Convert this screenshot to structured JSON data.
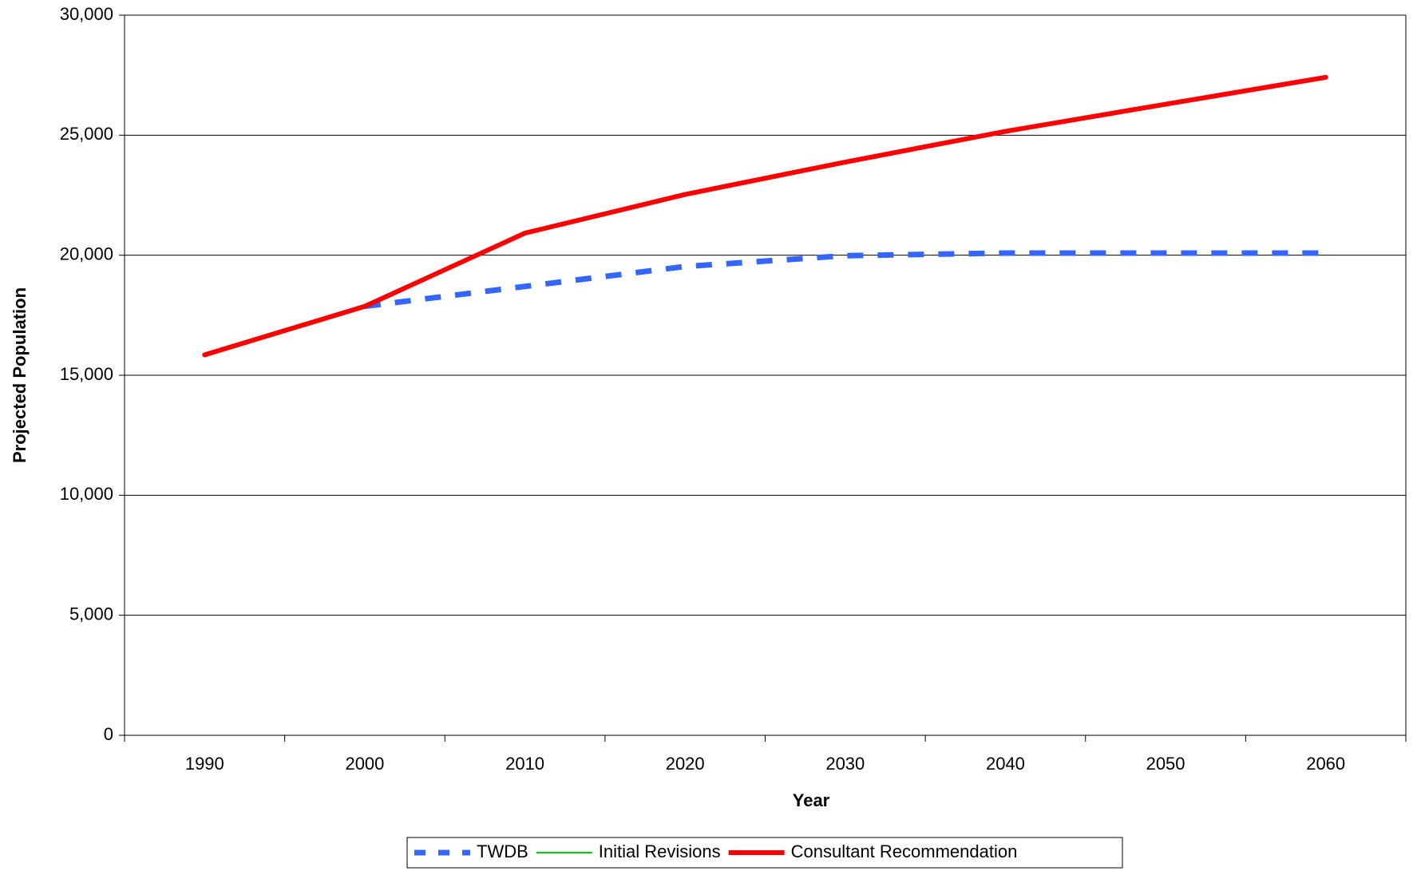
{
  "chart_data": {
    "type": "line",
    "x_label": "Year",
    "y_label": "Projected Population",
    "categories": [
      "1990",
      "2000",
      "2010",
      "2020",
      "2030",
      "2040",
      "2050",
      "2060"
    ],
    "series": [
      {
        "name": "TWDB",
        "color": "#3366ff",
        "style": "dashed",
        "values": [
          null,
          17870,
          18700,
          19530,
          19980,
          20090,
          20090,
          20090
        ]
      },
      {
        "name": "Initial Revisions",
        "color": "#00cc00",
        "style": "solid",
        "values": [
          15850,
          17870,
          20920,
          22530,
          23880,
          25160,
          26290,
          27410
        ]
      },
      {
        "name": "Consultant Recommendation",
        "color": "#ff0000",
        "style": "solid",
        "values": [
          15850,
          17870,
          20920,
          22530,
          23880,
          25160,
          26290,
          27410
        ]
      }
    ],
    "ylim": [
      0,
      30000
    ],
    "yticks": [
      0,
      {
        "value": 5000,
        "label": "5,000"
      },
      {
        "value": 10000,
        "label": "10,000"
      },
      {
        "value": 15000,
        "label": "15,000"
      },
      {
        "value": 20000,
        "label": "20,000"
      },
      {
        "value": 25000,
        "label": "25,000"
      },
      {
        "value": 30000,
        "label": "30,000"
      }
    ],
    "grid": true,
    "legend": "bottom"
  }
}
